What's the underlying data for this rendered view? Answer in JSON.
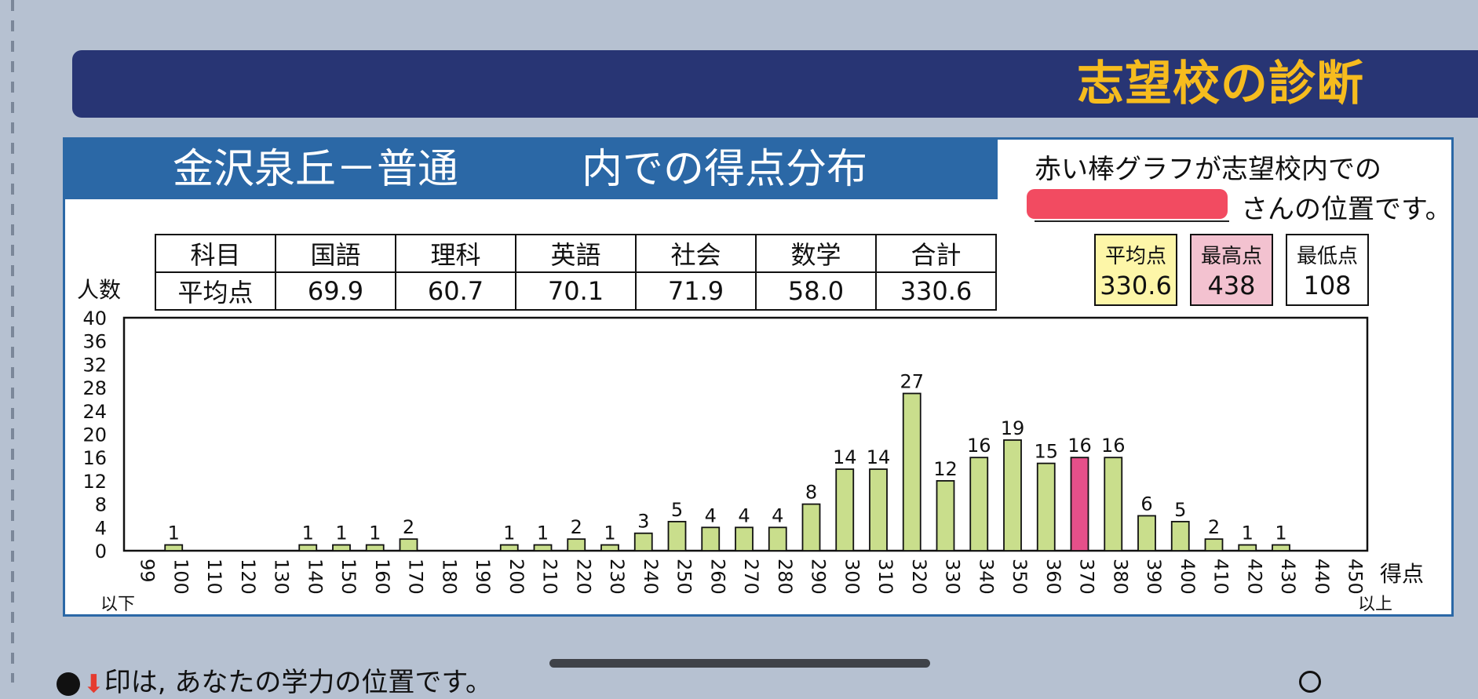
{
  "header": {
    "title": "志望校の診断"
  },
  "panel": {
    "school": "金沢泉丘－普通",
    "title_suffix": "内での得点分布",
    "note_line1": "赤い棒グラフが志望校内での",
    "note_line2": "さんの位置です。"
  },
  "averages": {
    "row1_label": "科目",
    "row2_label": "平均点",
    "subjects": [
      "国語",
      "理科",
      "英語",
      "社会",
      "数学",
      "合計"
    ],
    "values": [
      "69.9",
      "60.7",
      "70.1",
      "71.9",
      "58.0",
      "330.6"
    ]
  },
  "stats": [
    {
      "label": "平均点",
      "value": "330.6",
      "color": "#fdf6a8"
    },
    {
      "label": "最高点",
      "value": "438",
      "color": "#f3c2d0"
    },
    {
      "label": "最低点",
      "value": "108",
      "color": "#ffffff"
    }
  ],
  "chart_data": {
    "type": "bar",
    "ylabel": "人数",
    "xlabel": "得点",
    "x_low_label": "以下",
    "x_high_label": "以上",
    "ylim": [
      0,
      40
    ],
    "yticks": [
      0,
      4,
      8,
      12,
      16,
      20,
      24,
      28,
      32,
      36,
      40
    ],
    "categories": [
      "99",
      "100",
      "110",
      "120",
      "130",
      "140",
      "150",
      "160",
      "170",
      "180",
      "190",
      "200",
      "210",
      "220",
      "230",
      "240",
      "250",
      "260",
      "270",
      "280",
      "290",
      "300",
      "310",
      "320",
      "330",
      "340",
      "350",
      "360",
      "370",
      "380",
      "390",
      "400",
      "410",
      "420",
      "430",
      "440",
      "450"
    ],
    "values": [
      0,
      1,
      0,
      0,
      0,
      1,
      1,
      1,
      2,
      0,
      0,
      1,
      1,
      2,
      1,
      3,
      5,
      4,
      4,
      4,
      8,
      14,
      14,
      27,
      12,
      16,
      19,
      15,
      16,
      16,
      6,
      5,
      2,
      1,
      1,
      0,
      0
    ],
    "highlight_category": "370",
    "bar_color": "#c9de8c",
    "highlight_color": "#e6508a",
    "grid": false
  },
  "footer": {
    "text": "印は, あなたの学力の位置です。"
  }
}
